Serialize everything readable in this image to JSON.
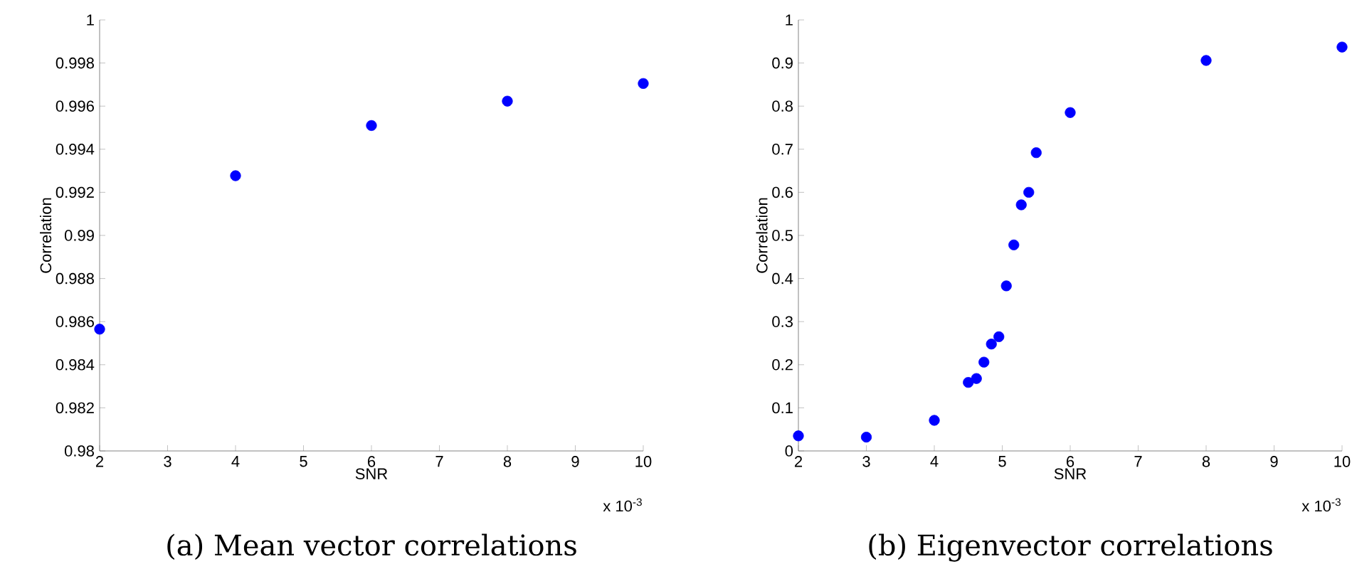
{
  "chart_data": [
    {
      "type": "scatter",
      "title": "(a) Mean vector correlations",
      "xlabel": "SNR",
      "ylabel": "Correlation",
      "color": "#0000ff",
      "marker": "circle",
      "x": [
        2,
        4,
        6,
        8,
        10
      ],
      "values": [
        0.98565,
        0.99277,
        0.9951,
        0.99623,
        0.99705
      ],
      "xlim": [
        2,
        10
      ],
      "ylim": [
        0.98,
        1
      ],
      "xticks": [
        2,
        3,
        4,
        5,
        6,
        7,
        8,
        9,
        10
      ],
      "yticks": [
        0.98,
        0.982,
        0.984,
        0.986,
        0.988,
        0.99,
        0.992,
        0.994,
        0.996,
        0.998,
        1
      ],
      "annotations": [
        "x 10$^{-3}$"
      ]
    },
    {
      "type": "scatter",
      "title": "(b) Eigenvector correlations",
      "xlabel": "SNR",
      "ylabel": "Correlation",
      "color": "#0000ff",
      "marker": "circle",
      "x": [
        2,
        3,
        4,
        4.5,
        4.62,
        4.73,
        4.84,
        4.95,
        5.06,
        5.17,
        5.28,
        5.39,
        5.5,
        6,
        8,
        10
      ],
      "values": [
        0.035,
        0.032,
        0.071,
        0.159,
        0.168,
        0.206,
        0.248,
        0.265,
        0.383,
        0.478,
        0.571,
        0.6,
        0.692,
        0.785,
        0.906,
        0.937
      ],
      "xlim": [
        2,
        10
      ],
      "ylim": [
        0,
        1
      ],
      "xticks": [
        2,
        3,
        4,
        5,
        6,
        7,
        8,
        9,
        10
      ],
      "yticks": [
        0,
        0.1,
        0.2,
        0.3,
        0.4,
        0.5,
        0.6,
        0.7,
        0.8,
        0.9,
        1
      ],
      "annotations": [
        "x 10$^{-3}$"
      ]
    }
  ]
}
